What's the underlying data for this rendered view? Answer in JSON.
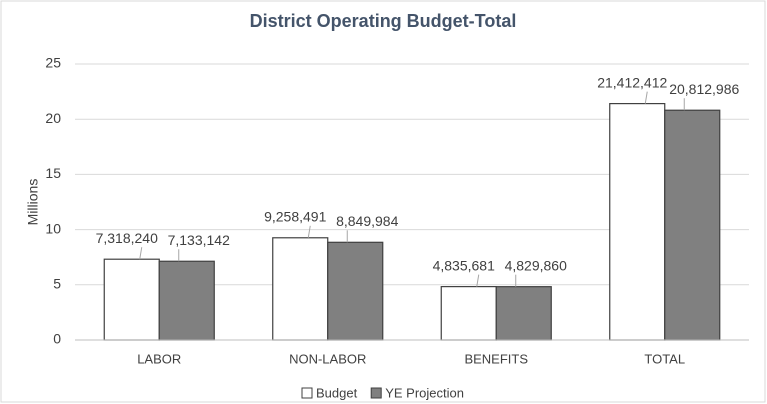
{
  "chart_data": {
    "type": "bar",
    "title": "District Operating Budget-Total",
    "y_label": "Millions",
    "categories": [
      "LABOR",
      "NON-LABOR",
      "BENEFITS",
      "TOTAL"
    ],
    "series": [
      {
        "name": "Budget",
        "color": "#ffffff",
        "values": [
          7.31824,
          9.258491,
          4.835681,
          21.412412
        ],
        "value_labels": [
          "7,318,240",
          "9,258,491",
          "4,835,681",
          "21,412,412"
        ]
      },
      {
        "name": "YE Projection",
        "color": "#808080",
        "values": [
          7.133142,
          8.849984,
          4.82986,
          20.812986
        ],
        "value_labels": [
          "7,133,142",
          "8,849,984",
          "4,829,860",
          "20,812,986"
        ]
      }
    ],
    "ylim": [
      0,
      25
    ],
    "yticks": [
      0,
      5,
      10,
      15,
      20,
      25
    ],
    "grid": true,
    "legend": "bottom"
  }
}
